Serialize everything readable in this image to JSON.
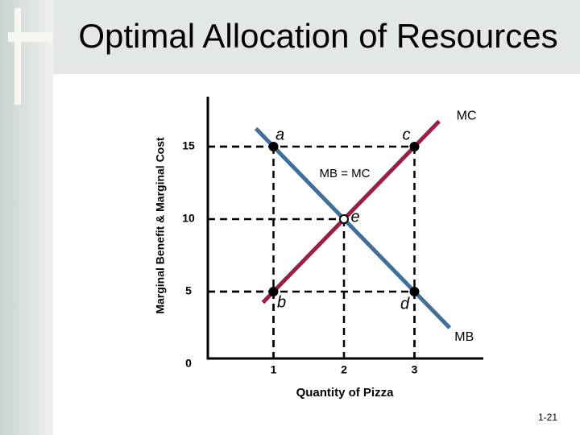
{
  "chart_data": {
    "type": "line",
    "title": "Optimal Allocation of Resources",
    "x_label": "Quantity of Pizza",
    "y_label": "Marginal Benefit & Marginal Cost",
    "xlim": [
      0,
      4
    ],
    "ylim": [
      0,
      18
    ],
    "xticks": [
      1,
      2,
      3
    ],
    "yticks": [
      0,
      5,
      10,
      15
    ],
    "series": [
      {
        "name": "MB",
        "color": "#3f6f9a",
        "x": [
          0.75,
          3.5
        ],
        "values": [
          16.25,
          2.5
        ]
      },
      {
        "name": "MC",
        "color": "#9a1f45",
        "x": [
          0.85,
          3.35
        ],
        "values": [
          4.25,
          16.75
        ]
      }
    ],
    "points": [
      {
        "label": "a",
        "x": 1,
        "y": 15
      },
      {
        "label": "b",
        "x": 1,
        "y": 5
      },
      {
        "label": "c",
        "x": 3,
        "y": 15
      },
      {
        "label": "d",
        "x": 3,
        "y": 5
      },
      {
        "label": "e",
        "x": 2,
        "y": 10
      }
    ],
    "annotation": "MB = MC"
  },
  "footer": "1-21"
}
